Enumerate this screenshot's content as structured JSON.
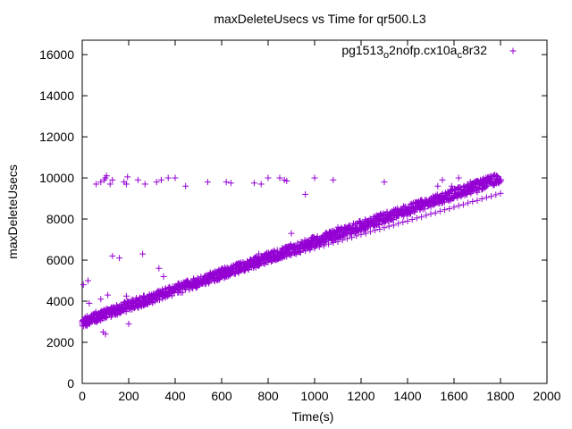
{
  "chart_data": {
    "type": "scatter",
    "title": "maxDeleteUsecs vs Time for qr500.L3",
    "xlabel": "Time(s)",
    "ylabel": "maxDeleteUsecs",
    "xlim": [
      0,
      2000
    ],
    "ylim": [
      0,
      16700
    ],
    "x_ticks": [
      "0",
      "200",
      "400",
      "600",
      "800",
      "1000",
      "1200",
      "1400",
      "1600",
      "1800",
      "2000"
    ],
    "y_ticks": [
      "0",
      "2000",
      "4000",
      "6000",
      "8000",
      "10000",
      "12000",
      "14000",
      "16000"
    ],
    "grid": false,
    "legend_position": "top-right",
    "series": [
      {
        "legend_prefix": "pg1513",
        "legend_sub1": "o",
        "legend_mid": "2nofp.cx10a",
        "legend_sub2": "c",
        "legend_suffix": "8r32",
        "color": "#9400d3",
        "marker": "plus",
        "trend": {
          "x_start": 0,
          "y_start": 3000,
          "x_end": 1800,
          "y_end": 10000
        },
        "x": [
          0,
          10,
          20,
          30,
          40,
          50,
          60,
          70,
          80,
          90,
          100,
          120,
          140,
          160,
          180,
          200,
          220,
          240,
          260,
          280,
          300,
          320,
          340,
          360,
          380,
          400,
          420,
          440,
          460,
          480,
          500,
          520,
          540,
          560,
          580,
          600,
          620,
          640,
          660,
          680,
          700,
          720,
          740,
          760,
          780,
          800,
          820,
          840,
          860,
          880,
          900,
          920,
          940,
          960,
          980,
          1000,
          1020,
          1040,
          1060,
          1080,
          1100,
          1120,
          1140,
          1160,
          1180,
          1200,
          1220,
          1240,
          1260,
          1280,
          1300,
          1320,
          1340,
          1360,
          1380,
          1400,
          1420,
          1440,
          1460,
          1480,
          1500,
          1520,
          1540,
          1560,
          1580,
          1600,
          1620,
          1640,
          1660,
          1680,
          1700,
          1720,
          1740,
          1760,
          1780,
          1800,
          5,
          25,
          60,
          80,
          95,
          100,
          105,
          120,
          130,
          180,
          190,
          195,
          240,
          270,
          320,
          340,
          370,
          400,
          445,
          540,
          620,
          640,
          740,
          770,
          800,
          850,
          870,
          880,
          960,
          1000,
          1080,
          1300,
          1530,
          1550,
          1590,
          1620,
          1670,
          1700,
          30,
          110,
          190,
          260,
          350,
          500,
          600,
          700,
          760,
          900,
          1000,
          1100,
          1200,
          1400,
          20,
          90,
          100,
          200,
          80,
          130,
          160,
          330
        ],
        "y": [
          3000,
          3050,
          3150,
          3180,
          3250,
          3300,
          3350,
          3420,
          3450,
          3500,
          3550,
          3600,
          3680,
          3750,
          3850,
          3900,
          3950,
          4050,
          4100,
          4180,
          4250,
          4300,
          4380,
          4430,
          4500,
          4550,
          4620,
          4700,
          4750,
          4820,
          4900,
          4950,
          5030,
          5100,
          5150,
          5250,
          5300,
          5380,
          5430,
          5500,
          5570,
          5650,
          5700,
          5780,
          5850,
          5900,
          5980,
          6050,
          6100,
          6180,
          6250,
          6300,
          6380,
          6450,
          6500,
          6580,
          6650,
          6700,
          6780,
          6850,
          6900,
          6980,
          7050,
          7100,
          7180,
          7250,
          7300,
          7380,
          7450,
          7500,
          7580,
          7650,
          7700,
          7780,
          7850,
          7900,
          7980,
          8050,
          8100,
          8180,
          8250,
          8300,
          8380,
          8450,
          8500,
          8580,
          8650,
          8700,
          8780,
          8850,
          8900,
          8980,
          9050,
          9100,
          9180,
          9250,
          4800,
          5000,
          9700,
          9800,
          9900,
          10000,
          10100,
          9700,
          9900,
          9800,
          9700,
          10050,
          9900,
          9700,
          9800,
          9900,
          10000,
          10000,
          9600,
          9800,
          9800,
          9750,
          9750,
          9700,
          10000,
          10000,
          9900,
          9850,
          9200,
          10000,
          9900,
          9800,
          9600,
          9900,
          9600,
          10000,
          9800,
          9300,
          3900,
          4300,
          4250,
          6300,
          5200,
          5000,
          5500,
          5500,
          6300,
          7300,
          6700,
          7600,
          7800,
          8300,
          2800,
          2500,
          2400,
          2900,
          4100,
          6200,
          6100,
          5600
        ]
      }
    ]
  }
}
